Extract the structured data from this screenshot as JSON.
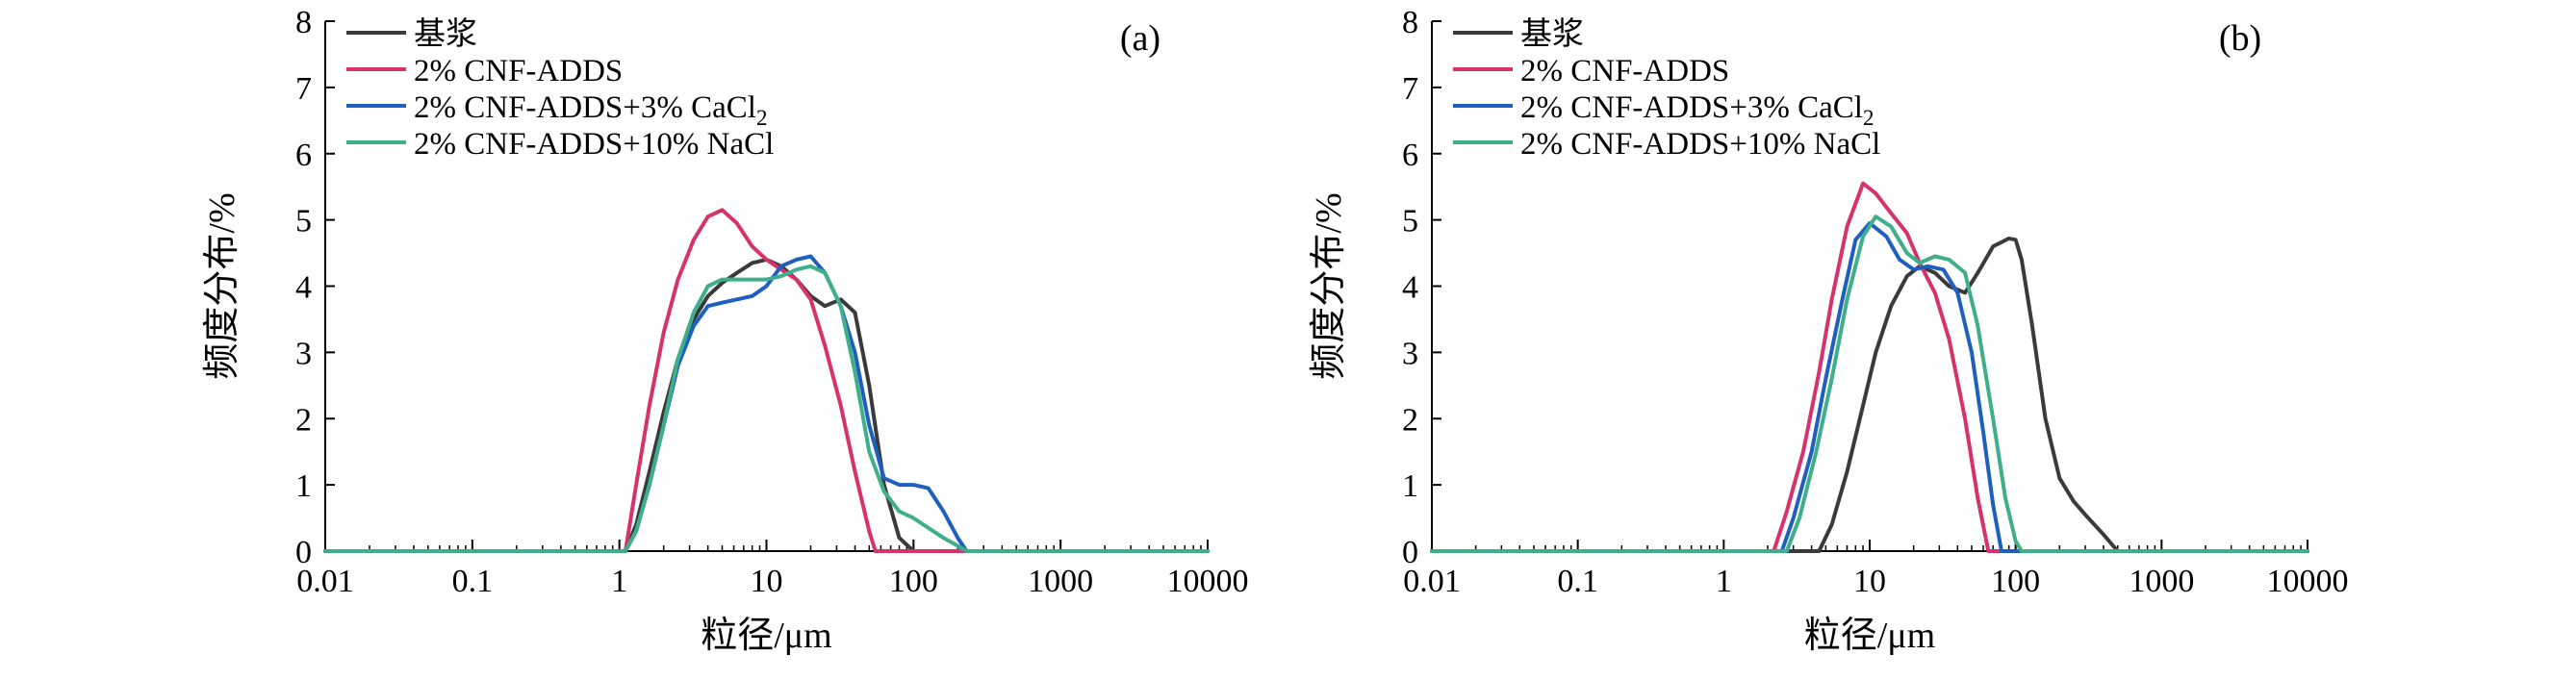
{
  "chart_data": [
    {
      "type": "line",
      "panel_label": "(a)",
      "xlabel": "粒径/μm",
      "ylabel": "频度分布/%",
      "xscale": "log",
      "xlim": [
        0.01,
        10000
      ],
      "ylim": [
        0,
        8
      ],
      "x_ticks": [
        "0.01",
        "0.1",
        "1",
        "10",
        "100",
        "1000",
        "10000"
      ],
      "y_ticks": [
        "0",
        "1",
        "2",
        "3",
        "4",
        "5",
        "6",
        "7",
        "8"
      ],
      "legend_position": "top-left",
      "series": [
        {
          "name": "基浆",
          "color": "#3a3a3a",
          "x": [
            0.01,
            1.1,
            1.3,
            1.6,
            2,
            2.5,
            3.2,
            4,
            5,
            6.3,
            8,
            10,
            12.6,
            16,
            20,
            25,
            32,
            40,
            50,
            63,
            80,
            100,
            1000,
            10000
          ],
          "y": [
            0,
            0,
            0.4,
            1.2,
            2.1,
            2.9,
            3.5,
            3.85,
            4.05,
            4.2,
            4.35,
            4.4,
            4.3,
            4.1,
            3.85,
            3.7,
            3.8,
            3.6,
            2.5,
            1.0,
            0.2,
            0,
            0,
            0
          ]
        },
        {
          "name": "2% CNF-ADDS",
          "color": "#d6336c",
          "x": [
            0.01,
            1.1,
            1.3,
            1.6,
            2,
            2.5,
            3.2,
            4,
            5,
            6.3,
            8,
            10,
            12.6,
            16,
            20,
            25,
            32,
            40,
            50,
            55,
            10000
          ],
          "y": [
            0,
            0,
            1.0,
            2.2,
            3.3,
            4.1,
            4.7,
            5.05,
            5.15,
            4.95,
            4.6,
            4.4,
            4.25,
            4.1,
            3.8,
            3.1,
            2.2,
            1.2,
            0.3,
            0,
            0
          ]
        },
        {
          "name": "2% CNF-ADDS+3% CaCl₂",
          "color": "#1f5fbf",
          "x": [
            0.01,
            1.1,
            1.3,
            1.6,
            2,
            2.5,
            3.2,
            4,
            5,
            6.3,
            8,
            10,
            12.6,
            16,
            20,
            25,
            32,
            40,
            50,
            63,
            80,
            100,
            126,
            160,
            200,
            230,
            10000
          ],
          "y": [
            0,
            0,
            0.3,
            1.0,
            1.9,
            2.8,
            3.4,
            3.7,
            3.75,
            3.8,
            3.85,
            4.0,
            4.3,
            4.4,
            4.45,
            4.2,
            3.7,
            3.0,
            1.9,
            1.1,
            1.0,
            1.0,
            0.95,
            0.6,
            0.2,
            0,
            0
          ]
        },
        {
          "name": "2% CNF-ADDS+10% NaCl",
          "color": "#3fae8a",
          "x": [
            0.01,
            1.1,
            1.3,
            1.6,
            2,
            2.5,
            3.2,
            4,
            5,
            6.3,
            8,
            10,
            12.6,
            16,
            20,
            25,
            32,
            40,
            50,
            63,
            80,
            100,
            126,
            160,
            200,
            230,
            10000
          ],
          "y": [
            0,
            0,
            0.3,
            1.0,
            1.9,
            2.9,
            3.6,
            4.0,
            4.1,
            4.1,
            4.1,
            4.1,
            4.15,
            4.25,
            4.3,
            4.2,
            3.7,
            2.7,
            1.5,
            0.9,
            0.6,
            0.5,
            0.35,
            0.2,
            0.08,
            0,
            0
          ]
        }
      ]
    },
    {
      "type": "line",
      "panel_label": "(b)",
      "xlabel": "粒径/μm",
      "ylabel": "频度分布/%",
      "xscale": "log",
      "xlim": [
        0.01,
        10000
      ],
      "ylim": [
        0,
        8
      ],
      "x_ticks": [
        "0.01",
        "0.1",
        "1",
        "10",
        "100",
        "1000",
        "10000"
      ],
      "y_ticks": [
        "0",
        "1",
        "2",
        "3",
        "4",
        "5",
        "6",
        "7",
        "8"
      ],
      "legend_position": "top-left",
      "series": [
        {
          "name": "基浆",
          "color": "#3a3a3a",
          "x": [
            0.01,
            4.5,
            5.5,
            7,
            9,
            11,
            14,
            18,
            22,
            28,
            35,
            45,
            55,
            70,
            90,
            100,
            110,
            130,
            160,
            200,
            250,
            300,
            400,
            500,
            10000
          ],
          "y": [
            0,
            0,
            0.4,
            1.2,
            2.2,
            3.0,
            3.7,
            4.15,
            4.3,
            4.2,
            4.0,
            3.9,
            4.2,
            4.6,
            4.72,
            4.7,
            4.4,
            3.4,
            2.0,
            1.1,
            0.75,
            0.55,
            0.25,
            0,
            0
          ]
        },
        {
          "name": "2% CNF-ADDS",
          "color": "#d6336c",
          "x": [
            0.01,
            2.2,
            2.7,
            3.5,
            4.5,
            5.5,
            7,
            9,
            11,
            14,
            18,
            22,
            28,
            35,
            45,
            55,
            65,
            10000
          ],
          "y": [
            0,
            0,
            0.6,
            1.5,
            2.7,
            3.8,
            4.9,
            5.55,
            5.4,
            5.1,
            4.8,
            4.35,
            3.9,
            3.2,
            2.0,
            0.8,
            0,
            0
          ]
        },
        {
          "name": "2% CNF-ADDS+3% CaCl₂",
          "color": "#1f5fbf",
          "x": [
            0.01,
            2.5,
            3,
            4,
            5,
            6.5,
            8,
            10,
            13,
            16,
            20,
            25,
            32,
            40,
            50,
            60,
            70,
            80,
            10000
          ],
          "y": [
            0,
            0,
            0.5,
            1.5,
            2.6,
            3.8,
            4.7,
            4.95,
            4.75,
            4.4,
            4.25,
            4.3,
            4.25,
            3.9,
            3.0,
            1.8,
            0.7,
            0,
            0
          ]
        },
        {
          "name": "2% CNF-ADDS+10% NaCl",
          "color": "#3fae8a",
          "x": [
            0.01,
            2.7,
            3.3,
            4.3,
            5.5,
            7,
            9,
            11,
            14,
            18,
            22,
            28,
            35,
            45,
            55,
            70,
            85,
            100,
            110,
            10000
          ],
          "y": [
            0,
            0,
            0.5,
            1.5,
            2.6,
            3.8,
            4.75,
            5.05,
            4.9,
            4.5,
            4.35,
            4.45,
            4.4,
            4.2,
            3.4,
            2.0,
            0.8,
            0.15,
            0,
            0
          ]
        }
      ]
    }
  ]
}
